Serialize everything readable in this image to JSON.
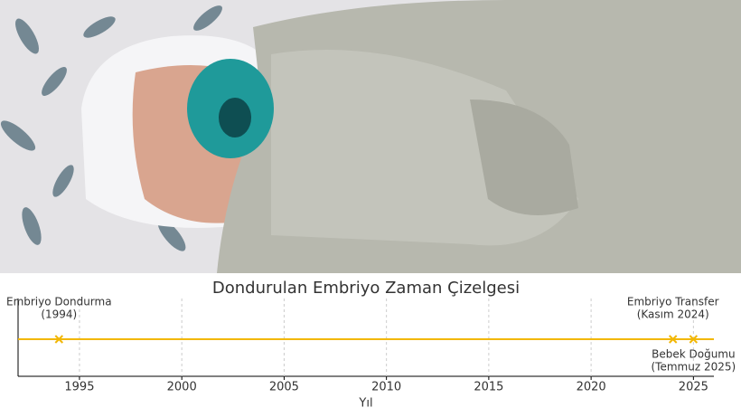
{
  "chart_data": {
    "type": "timeline",
    "title": "Dondurulan Embriyo Zaman Çizelgesi",
    "xlabel": "Yıl",
    "xlim": [
      1992,
      2026
    ],
    "xticks": [
      1995,
      2000,
      2005,
      2010,
      2015,
      2020,
      2025
    ],
    "grid": true,
    "color": "#f2b705",
    "events": [
      {
        "label": [
          "Embriyo Dondurma",
          "(1994)"
        ],
        "x": 1994
      },
      {
        "label": [
          "Embriyo Transfer",
          "(Kasım 2024)"
        ],
        "x": 2024
      },
      {
        "label": [
          "Bebek Doğumu",
          "(Temmuz 2025)"
        ],
        "x": 2025
      }
    ]
  }
}
